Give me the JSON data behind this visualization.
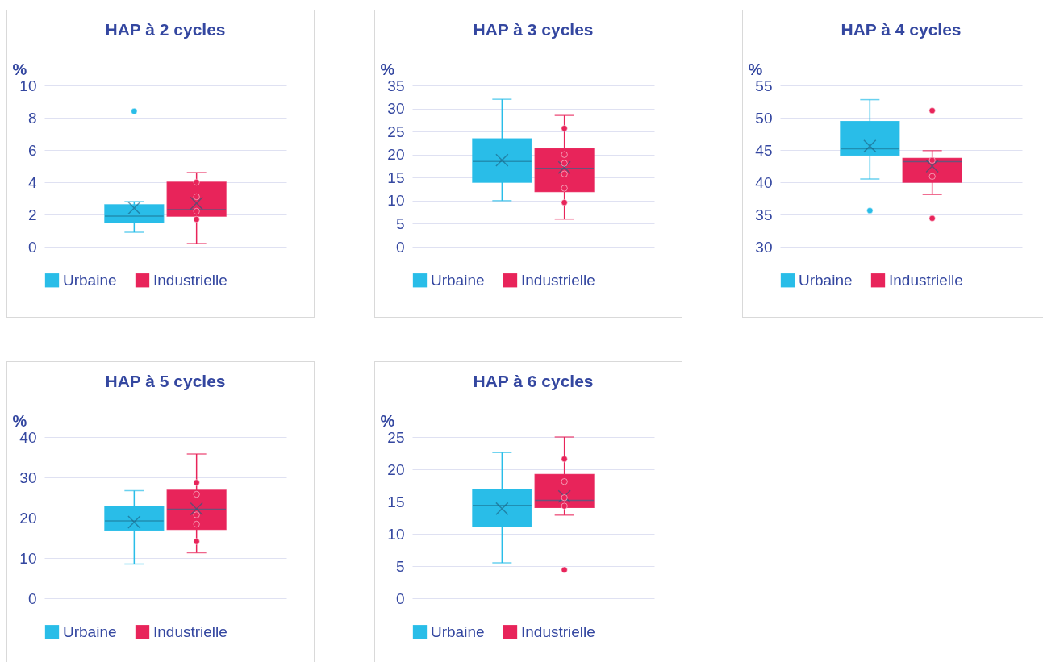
{
  "chart_data": [
    {
      "type": "box",
      "title": "HAP à 2 cycles",
      "ylabel": "%",
      "categories": [
        null
      ],
      "ylim": [
        0,
        10
      ],
      "yticks": [
        0,
        2,
        4,
        6,
        8,
        10
      ],
      "grid": "y",
      "legend": "bottom",
      "series": [
        {
          "name": "Urbaine",
          "color": "#29bde8",
          "boxes": [
            {
              "low": 0.9,
              "q1": 1.5,
              "median": 1.9,
              "q3": 2.6,
              "high": 2.8,
              "mean": 2.4,
              "outliers": [
                8.4
              ]
            }
          ]
        },
        {
          "name": "Industrielle",
          "color": "#e8245a",
          "boxes": [
            {
              "low": 0.2,
              "q1": 1.9,
              "median": 2.3,
              "q3": 4.0,
              "high": 4.6,
              "mean": 2.7,
              "outliers": [
                4.0,
                3.1,
                2.2,
                1.7
              ]
            }
          ]
        }
      ]
    },
    {
      "type": "box",
      "title": "HAP à 3 cycles",
      "ylabel": "%",
      "categories": [
        null
      ],
      "ylim": [
        0,
        35
      ],
      "yticks": [
        0,
        5,
        10,
        15,
        20,
        25,
        30,
        35
      ],
      "grid": "y",
      "legend": "bottom",
      "series": [
        {
          "name": "Urbaine",
          "color": "#29bde8",
          "boxes": [
            {
              "low": 10,
              "q1": 14,
              "median": 18.5,
              "q3": 23.4,
              "high": 32,
              "mean": 18.8
            }
          ]
        },
        {
          "name": "Industrielle",
          "color": "#e8245a",
          "boxes": [
            {
              "low": 6,
              "q1": 12,
              "median": 17,
              "q3": 21.3,
              "high": 28.5,
              "mean": 17.2,
              "outliers": [
                25.7,
                20,
                18.1,
                15.8,
                12.7,
                9.6
              ]
            }
          ]
        }
      ]
    },
    {
      "type": "box",
      "title": "HAP à 4 cycles",
      "ylabel": "%",
      "categories": [
        null
      ],
      "ylim": [
        30,
        55
      ],
      "yticks": [
        30,
        35,
        40,
        45,
        50,
        55
      ],
      "grid": "y",
      "legend": "bottom",
      "series": [
        {
          "name": "Urbaine",
          "color": "#29bde8",
          "boxes": [
            {
              "low": 40.5,
              "q1": 44.2,
              "median": 45.2,
              "q3": 49.4,
              "high": 52.8,
              "mean": 45.6,
              "outliers": [
                35.6
              ]
            }
          ]
        },
        {
          "name": "Industrielle",
          "color": "#e8245a",
          "boxes": [
            {
              "low": 38.1,
              "q1": 40,
              "median": 43.2,
              "q3": 43.7,
              "high": 44.9,
              "mean": 42.5,
              "outliers": [
                51.1,
                43.4,
                40.9,
                34.4
              ]
            }
          ]
        }
      ]
    },
    {
      "type": "box",
      "title": "HAP à 5 cycles",
      "ylabel": "%",
      "categories": [
        null
      ],
      "ylim": [
        0,
        40
      ],
      "yticks": [
        0,
        10,
        20,
        30,
        40
      ],
      "grid": "y",
      "legend": "bottom",
      "series": [
        {
          "name": "Urbaine",
          "color": "#29bde8",
          "boxes": [
            {
              "low": 8.5,
              "q1": 16.9,
              "median": 19.2,
              "q3": 22.8,
              "high": 26.7,
              "mean": 18.9
            }
          ]
        },
        {
          "name": "Industrielle",
          "color": "#e8245a",
          "boxes": [
            {
              "low": 11.3,
              "q1": 17.1,
              "median": 22.1,
              "q3": 26.8,
              "high": 35.8,
              "mean": 22.2,
              "outliers": [
                28.7,
                25.8,
                20.7,
                18.4,
                14.1
              ]
            }
          ]
        }
      ]
    },
    {
      "type": "box",
      "title": "HAP à 6 cycles",
      "ylabel": "%",
      "categories": [
        null
      ],
      "ylim": [
        0,
        25
      ],
      "yticks": [
        0,
        5,
        10,
        15,
        20,
        25
      ],
      "grid": "y",
      "legend": "bottom",
      "series": [
        {
          "name": "Urbaine",
          "color": "#29bde8",
          "boxes": [
            {
              "low": 5.5,
              "q1": 11.1,
              "median": 14.4,
              "q3": 16.9,
              "high": 22.6,
              "mean": 13.9
            }
          ]
        },
        {
          "name": "Industrielle",
          "color": "#e8245a",
          "boxes": [
            {
              "low": 12.9,
              "q1": 14.1,
              "median": 15.2,
              "q3": 19.2,
              "high": 25,
              "mean": 15.8,
              "outliers": [
                21.6,
                18.1,
                15.6,
                14.3,
                4.4
              ]
            }
          ]
        }
      ]
    }
  ]
}
